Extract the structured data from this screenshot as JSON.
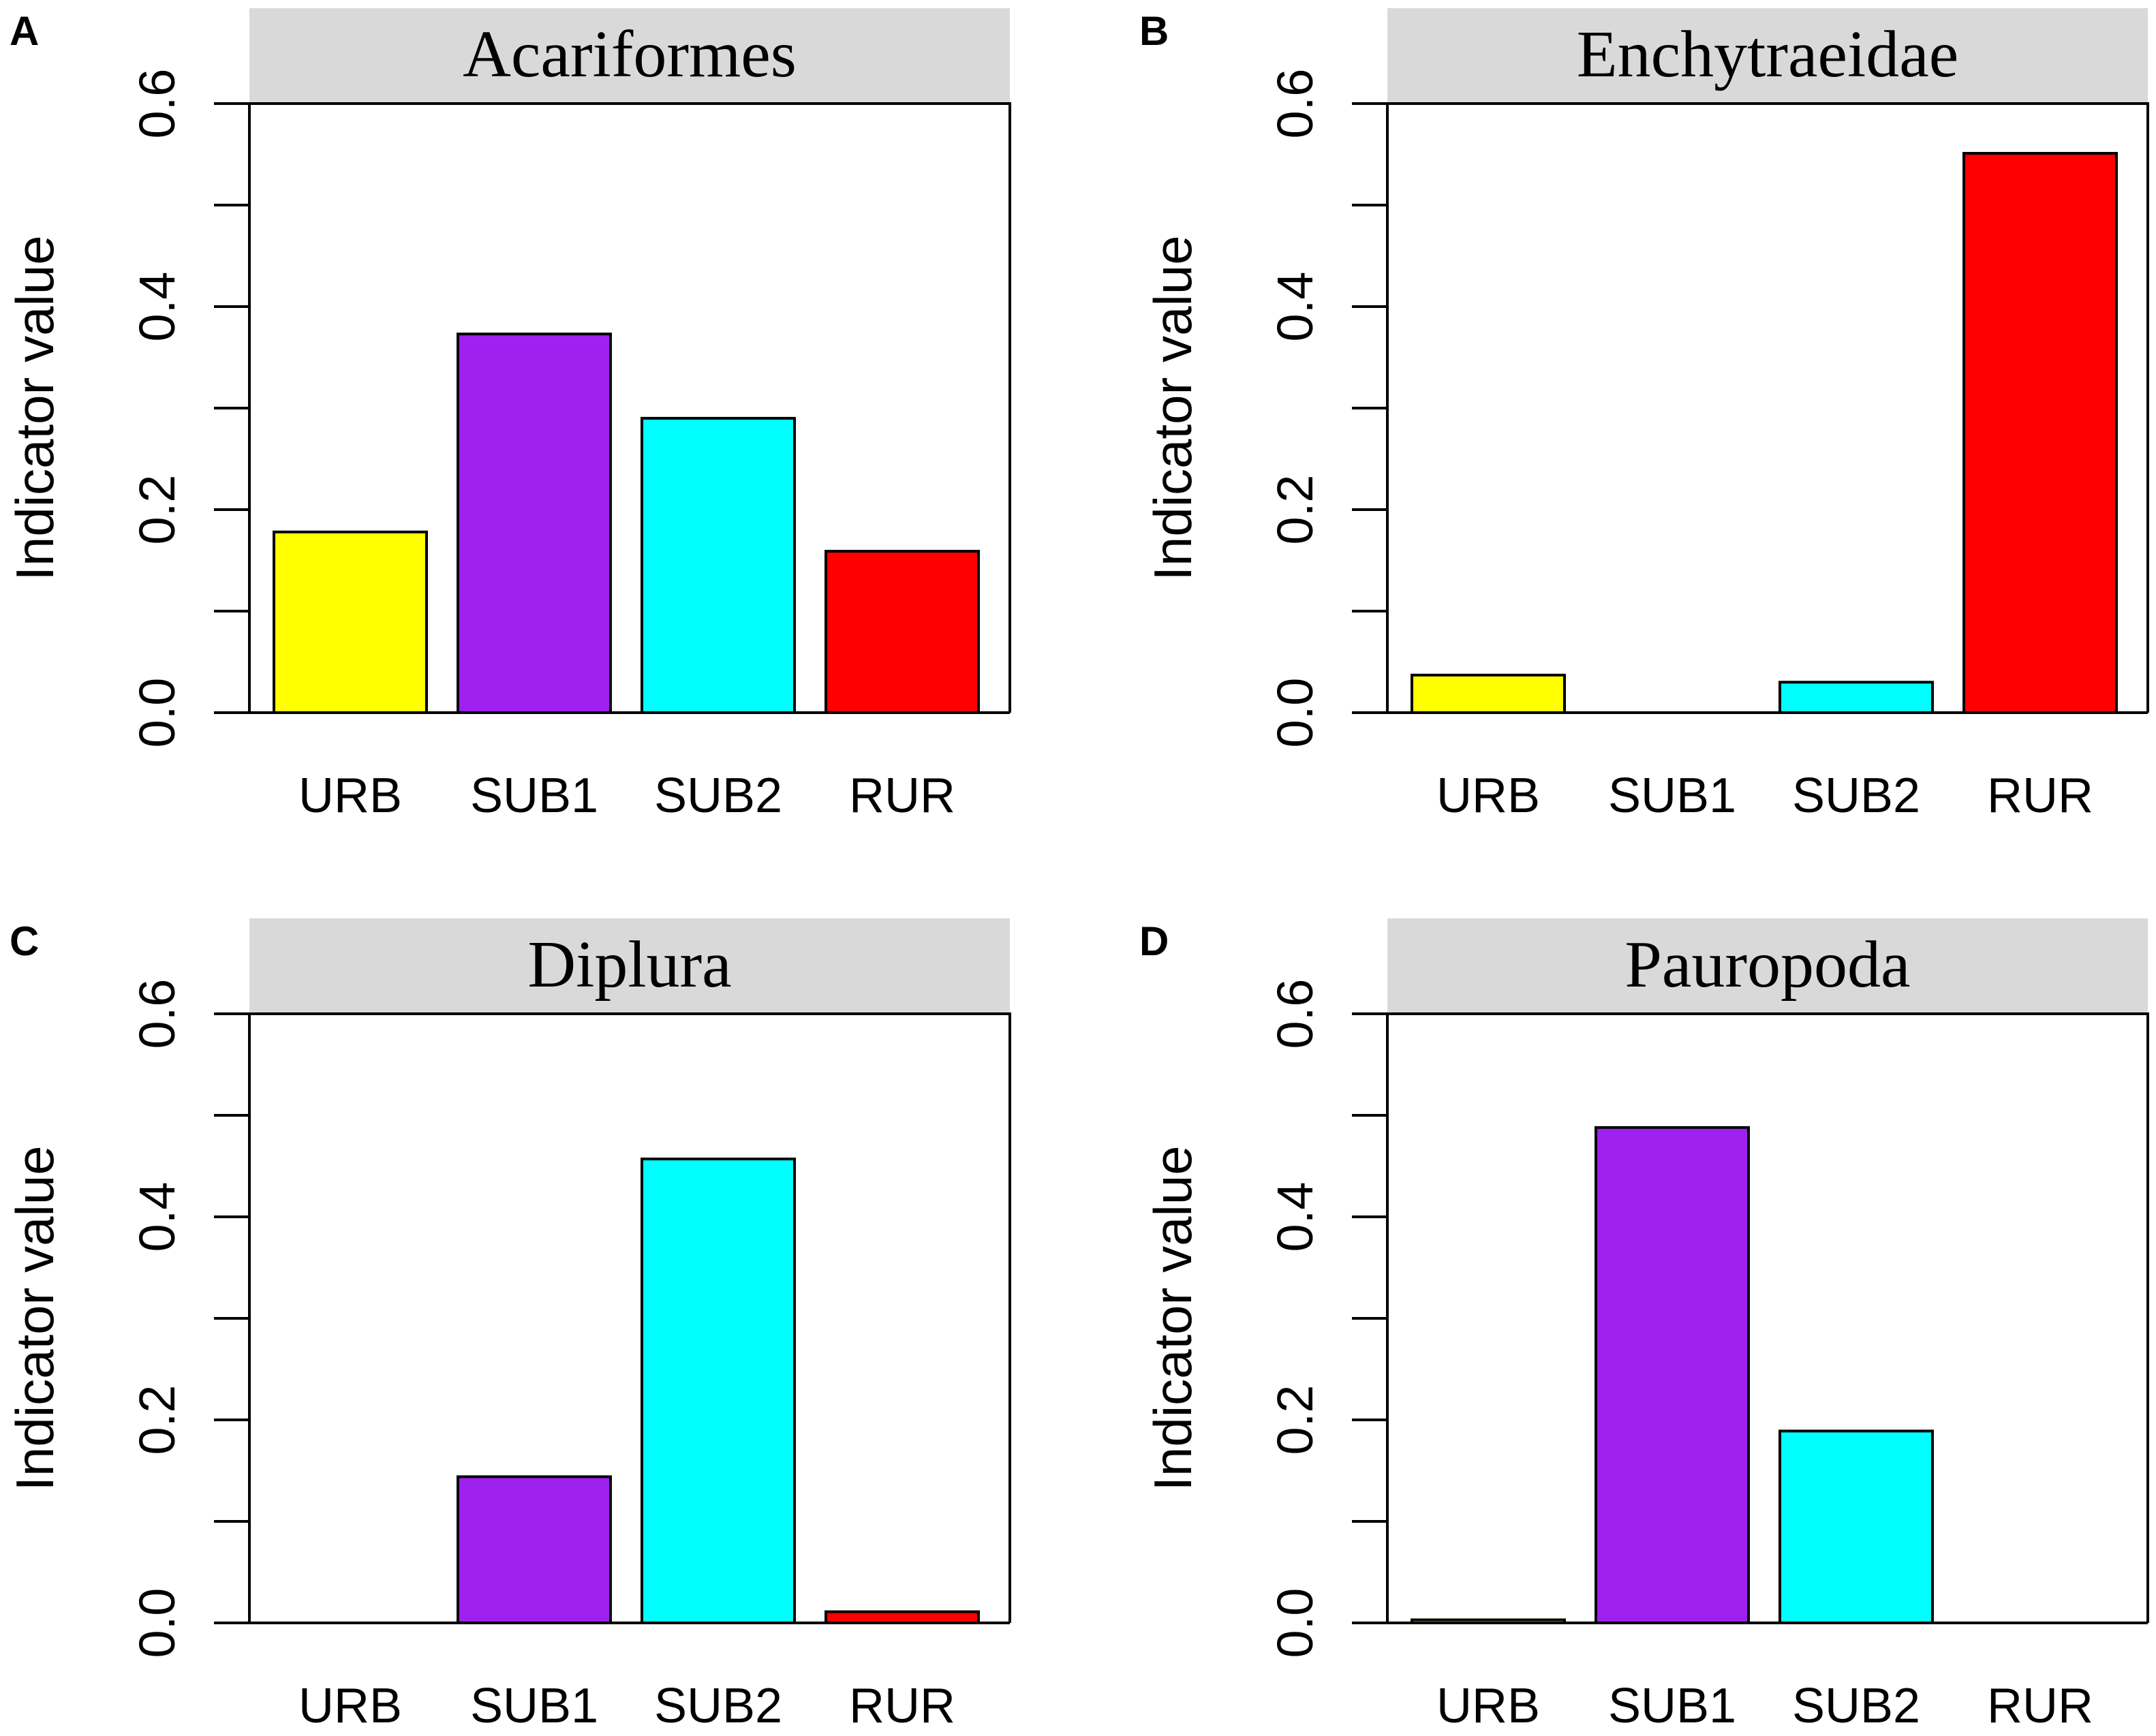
{
  "chart_data": [
    {
      "panel": "A",
      "type": "bar",
      "title": "Acariformes",
      "categories": [
        "URB",
        "SUB1",
        "SUB2",
        "RUR"
      ],
      "values": [
        0.178,
        0.373,
        0.29,
        0.159
      ],
      "colors": [
        "#ffff00",
        "#a020f0",
        "#00ffff",
        "#ff0000"
      ],
      "xlabel": "",
      "ylabel": "Indicator value",
      "ylim": [
        0,
        0.6
      ],
      "yticks": [
        0.0,
        0.2,
        0.4,
        0.6
      ],
      "ytick_labels": [
        "0.0",
        "0.2",
        "0.4",
        "0.6"
      ]
    },
    {
      "panel": "B",
      "type": "bar",
      "title": "Enchytraeidae",
      "categories": [
        "URB",
        "SUB1",
        "SUB2",
        "RUR"
      ],
      "values": [
        0.037,
        0.0,
        0.03,
        0.551
      ],
      "colors": [
        "#ffff00",
        "#a020f0",
        "#00ffff",
        "#ff0000"
      ],
      "xlabel": "",
      "ylabel": "Indicator value",
      "ylim": [
        0,
        0.6
      ],
      "yticks": [
        0.0,
        0.2,
        0.4,
        0.6
      ],
      "ytick_labels": [
        "0.0",
        "0.2",
        "0.4",
        "0.6"
      ]
    },
    {
      "panel": "C",
      "type": "bar",
      "title": "Diplura",
      "categories": [
        "URB",
        "SUB1",
        "SUB2",
        "RUR"
      ],
      "values": [
        0.0,
        0.144,
        0.457,
        0.011
      ],
      "colors": [
        "#ffff00",
        "#a020f0",
        "#00ffff",
        "#ff0000"
      ],
      "xlabel": "",
      "ylabel": "Indicator value",
      "ylim": [
        0,
        0.6
      ],
      "yticks": [
        0.0,
        0.2,
        0.4,
        0.6
      ],
      "ytick_labels": [
        "0.0",
        "0.2",
        "0.4",
        "0.6"
      ]
    },
    {
      "panel": "D",
      "type": "bar",
      "title": "Pauropoda",
      "categories": [
        "URB",
        "SUB1",
        "SUB2",
        "RUR"
      ],
      "values": [
        0.003,
        0.488,
        0.189,
        0.0
      ],
      "colors": [
        "#ffff00",
        "#a020f0",
        "#00ffff",
        "#ff0000"
      ],
      "xlabel": "",
      "ylabel": "Indicator value",
      "ylim": [
        0,
        0.6
      ],
      "yticks": [
        0.0,
        0.2,
        0.4,
        0.6
      ],
      "ytick_labels": [
        "0.0",
        "0.2",
        "0.4",
        "0.6"
      ]
    }
  ],
  "colors": {
    "strip_background": "#d9d9d9",
    "axis": "#000000",
    "background": "#ffffff"
  }
}
